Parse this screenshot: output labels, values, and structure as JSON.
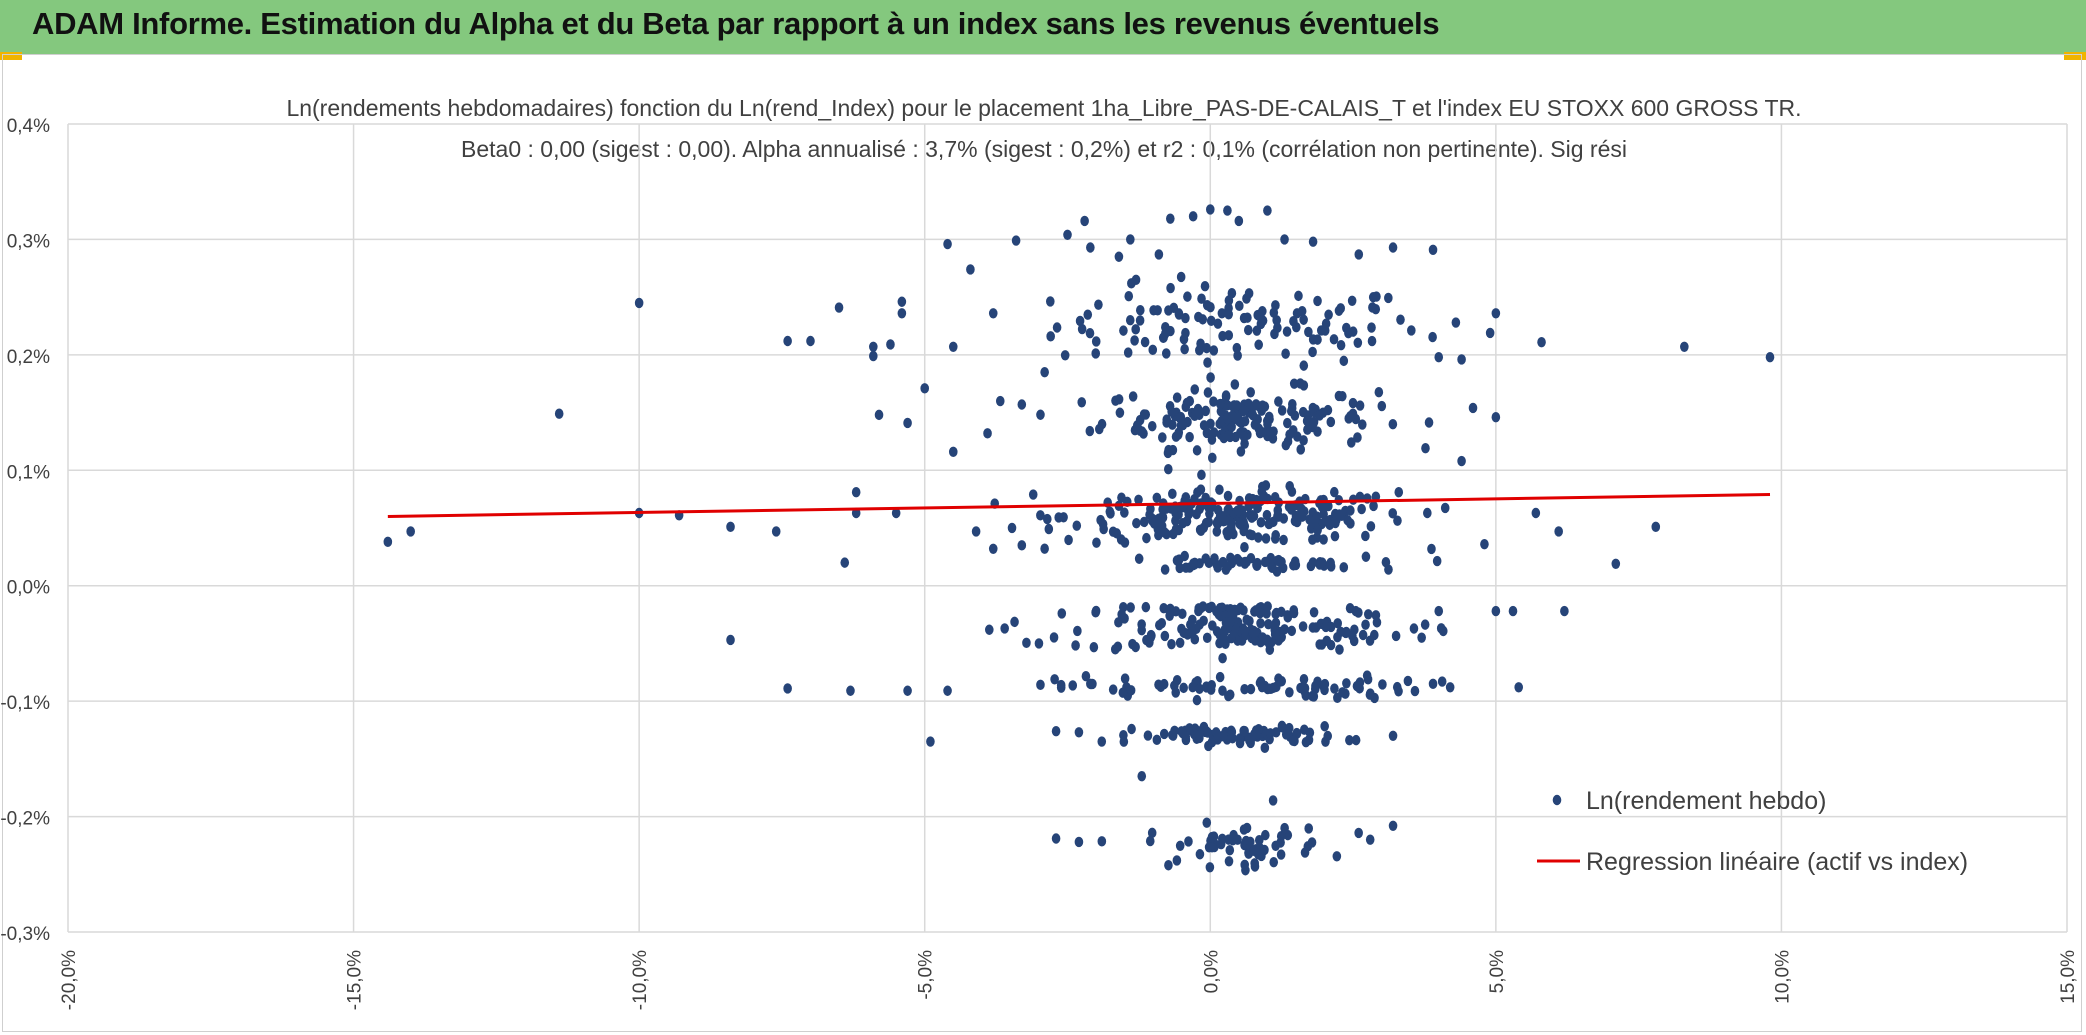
{
  "banner": {
    "title": "ADAM Informe. Estimation du Alpha et du Beta par rapport à un index sans les revenus éventuels",
    "color": "#84c87e",
    "corner_color": "#f0b400"
  },
  "chart_data": {
    "type": "scatter",
    "title_line1": "Ln(rendements hebdomadaires) fonction du Ln(rend_Index) pour le placement 1ha_Libre_PAS-DE-CALAIS_T et l'index EU STOXX 600 GROSS TR.",
    "title_line2": "Beta0 : 0,00 (sigest : 0,00). Alpha annualisé : 3,7% (sigest : 0,2%) et r2 : 0,1% (corrélation non pertinente). Sig rési",
    "x_ticks": [
      "-20,0%",
      "-15,0%",
      "-10,0%",
      "-5,0%",
      "0,0%",
      "5,0%",
      "10,0%",
      "15,0%"
    ],
    "y_ticks": [
      "-0,3%",
      "-0,2%",
      "-0,1%",
      "0,0%",
      "0,1%",
      "0,2%",
      "0,3%",
      "0,4%"
    ],
    "xlim": [
      -20,
      15
    ],
    "ylim": [
      -0.3,
      0.4
    ],
    "grid": true,
    "legend_position": "bottom-right",
    "colors": {
      "points": "#264478",
      "regression": "#e00000",
      "grid": "#d9d9d9"
    },
    "series": [
      {
        "name": "Ln(rendement hebdo)",
        "kind": "scatter",
        "points": [
          [
            -14.4,
            0.038
          ],
          [
            -14.0,
            0.047
          ],
          [
            -11.4,
            0.149
          ],
          [
            -10.0,
            0.063
          ],
          [
            -10.0,
            0.245
          ],
          [
            -9.3,
            0.061
          ],
          [
            -8.4,
            0.051
          ],
          [
            -8.4,
            -0.047
          ],
          [
            -7.6,
            0.047
          ],
          [
            -7.4,
            -0.089
          ],
          [
            -7.4,
            0.212
          ],
          [
            -7.0,
            0.212
          ],
          [
            -6.5,
            0.241
          ],
          [
            -6.4,
            0.02
          ],
          [
            -6.3,
            -0.091
          ],
          [
            -6.2,
            0.081
          ],
          [
            -6.2,
            0.063
          ],
          [
            -5.9,
            0.207
          ],
          [
            -5.9,
            0.199
          ],
          [
            -5.8,
            0.148
          ],
          [
            -5.6,
            0.209
          ],
          [
            -5.5,
            0.063
          ],
          [
            -5.4,
            0.236
          ],
          [
            -5.4,
            0.246
          ],
          [
            -5.3,
            0.141
          ],
          [
            -5.3,
            -0.091
          ],
          [
            -5.0,
            0.171
          ],
          [
            -4.9,
            -0.135
          ],
          [
            -4.6,
            0.296
          ],
          [
            -4.6,
            -0.091
          ],
          [
            -4.5,
            0.116
          ],
          [
            -4.5,
            0.207
          ],
          [
            -4.2,
            0.274
          ],
          [
            -3.9,
            0.132
          ],
          [
            -3.8,
            0.236
          ],
          [
            -3.4,
            0.299
          ],
          [
            -3.3,
            0.157
          ],
          [
            -3.1,
            0.079
          ],
          [
            -2.9,
            0.185
          ],
          [
            -2.5,
            0.304
          ],
          [
            -2.2,
            0.316
          ],
          [
            -2.1,
            0.293
          ],
          [
            -1.6,
            0.285
          ],
          [
            -1.4,
            0.3
          ],
          [
            -1.3,
            0.265
          ],
          [
            -0.9,
            0.287
          ],
          [
            -0.7,
            0.318
          ],
          [
            -0.3,
            0.32
          ],
          [
            0.0,
            0.326
          ],
          [
            0.3,
            0.325
          ],
          [
            0.5,
            0.316
          ],
          [
            1.0,
            0.325
          ],
          [
            1.3,
            0.3
          ],
          [
            1.8,
            0.298
          ],
          [
            2.6,
            0.287
          ],
          [
            3.2,
            0.293
          ],
          [
            3.9,
            0.291
          ],
          [
            4.0,
            0.198
          ],
          [
            4.3,
            0.228
          ],
          [
            4.4,
            0.196
          ],
          [
            4.9,
            0.219
          ],
          [
            5.0,
            0.236
          ],
          [
            5.8,
            0.211
          ],
          [
            8.3,
            0.207
          ],
          [
            9.8,
            0.198
          ],
          [
            5.0,
            0.146
          ],
          [
            4.6,
            0.154
          ],
          [
            4.4,
            0.108
          ],
          [
            3.3,
            0.081
          ],
          [
            5.7,
            0.063
          ],
          [
            6.1,
            0.047
          ],
          [
            7.8,
            0.051
          ],
          [
            7.1,
            0.019
          ],
          [
            5.0,
            -0.022
          ],
          [
            5.3,
            -0.022
          ],
          [
            6.2,
            -0.022
          ],
          [
            4.0,
            -0.022
          ],
          [
            4.8,
            0.036
          ],
          [
            5.4,
            -0.088
          ],
          [
            4.2,
            -0.088
          ],
          [
            3.9,
            -0.085
          ],
          [
            3.8,
            0.063
          ],
          [
            3.2,
            -0.13
          ],
          [
            3.2,
            -0.208
          ],
          [
            2.8,
            -0.22
          ],
          [
            -2.7,
            -0.219
          ],
          [
            -2.3,
            -0.222
          ],
          [
            -1.2,
            -0.165
          ],
          [
            1.1,
            -0.186
          ],
          [
            -2.7,
            -0.126
          ],
          [
            -2.3,
            -0.127
          ],
          [
            -1.9,
            -0.135
          ],
          [
            -4.1,
            0.047
          ],
          [
            -3.8,
            0.032
          ],
          [
            -3.6,
            -0.037
          ],
          [
            -3.0,
            -0.05
          ],
          [
            -2.6,
            -0.024
          ],
          [
            -2.1,
            -0.085
          ],
          [
            -1.7,
            -0.09
          ],
          [
            -3.3,
            0.035
          ]
        ]
      },
      {
        "name": "Regression linéaire (actif vs index)",
        "kind": "line",
        "points": [
          [
            -14.4,
            0.06
          ],
          [
            9.8,
            0.079
          ]
        ]
      }
    ],
    "clusters": [
      {
        "y": 0.225,
        "count": 120,
        "x_sd": 1.6,
        "y_sd": 0.017
      },
      {
        "y": 0.145,
        "count": 180,
        "x_sd": 1.2,
        "y_sd": 0.013
      },
      {
        "y": 0.06,
        "count": 230,
        "x_sd": 1.5,
        "y_sd": 0.011
      },
      {
        "y": 0.019,
        "count": 60,
        "x_sd": 1.1,
        "y_sd": 0.003
      },
      {
        "y": -0.022,
        "count": 50,
        "x_sd": 1.2,
        "y_sd": 0.003
      },
      {
        "y": -0.04,
        "count": 130,
        "x_sd": 1.5,
        "y_sd": 0.008
      },
      {
        "y": -0.088,
        "count": 80,
        "x_sd": 1.6,
        "y_sd": 0.005
      },
      {
        "y": -0.13,
        "count": 90,
        "x_sd": 0.9,
        "y_sd": 0.004
      },
      {
        "y": -0.225,
        "count": 60,
        "x_sd": 0.8,
        "y_sd": 0.009
      }
    ]
  }
}
